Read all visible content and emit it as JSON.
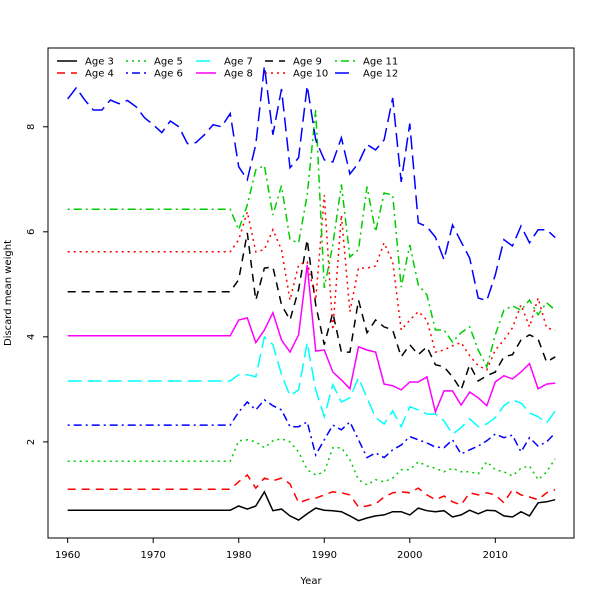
{
  "chart_data": {
    "type": "line",
    "title": "",
    "xlabel": "Year",
    "ylabel": "Discard mean weight",
    "xlim": [
      1957.7,
      2019.2
    ],
    "ylim": [
      0.17,
      9.5
    ],
    "xticks": [
      1960,
      1970,
      1980,
      1990,
      2000,
      2010
    ],
    "yticks": [
      2,
      4,
      6,
      8
    ],
    "grid": false,
    "legend_placement": "top-left",
    "x": [
      1960,
      1961,
      1962,
      1963,
      1964,
      1965,
      1966,
      1967,
      1968,
      1969,
      1970,
      1971,
      1972,
      1973,
      1974,
      1975,
      1976,
      1977,
      1978,
      1979,
      1980,
      1981,
      1982,
      1983,
      1984,
      1985,
      1986,
      1987,
      1988,
      1989,
      1990,
      1991,
      1992,
      1993,
      1994,
      1995,
      1996,
      1997,
      1998,
      1999,
      2000,
      2001,
      2002,
      2003,
      2004,
      2005,
      2006,
      2007,
      2008,
      2009,
      2010,
      2011,
      2012,
      2013,
      2014,
      2015,
      2016,
      2017
    ],
    "series": [
      {
        "name": "Age 3",
        "color": "#000000",
        "dash": "solid",
        "values": [
          0.7,
          0.7,
          0.7,
          0.7,
          0.7,
          0.7,
          0.7,
          0.7,
          0.7,
          0.7,
          0.7,
          0.7,
          0.7,
          0.7,
          0.7,
          0.7,
          0.7,
          0.7,
          0.7,
          0.7,
          0.78,
          0.72,
          0.78,
          1.05,
          0.69,
          0.72,
          0.59,
          0.51,
          0.63,
          0.74,
          0.7,
          0.69,
          0.67,
          0.59,
          0.5,
          0.55,
          0.59,
          0.61,
          0.67,
          0.67,
          0.61,
          0.74,
          0.69,
          0.67,
          0.69,
          0.57,
          0.61,
          0.7,
          0.63,
          0.7,
          0.69,
          0.59,
          0.57,
          0.67,
          0.59,
          0.84,
          0.86,
          0.9
        ]
      },
      {
        "name": "Age 4",
        "color": "#ff0000",
        "dash": "dashed",
        "values": [
          1.1,
          1.1,
          1.1,
          1.1,
          1.1,
          1.1,
          1.1,
          1.1,
          1.1,
          1.1,
          1.1,
          1.1,
          1.1,
          1.1,
          1.1,
          1.1,
          1.1,
          1.1,
          1.1,
          1.1,
          1.24,
          1.37,
          1.12,
          1.31,
          1.26,
          1.31,
          1.2,
          0.84,
          0.9,
          0.93,
          0.99,
          1.05,
          1.03,
          0.99,
          0.76,
          0.78,
          0.82,
          0.95,
          1.03,
          1.05,
          1.03,
          1.12,
          0.99,
          0.9,
          0.97,
          0.86,
          0.8,
          1.03,
          0.99,
          1.03,
          0.99,
          0.84,
          1.09,
          0.99,
          0.95,
          0.9,
          1.03,
          1.09
        ]
      },
      {
        "name": "Age 5",
        "color": "#00cd00",
        "dash": "dotted",
        "values": [
          1.63,
          1.63,
          1.63,
          1.63,
          1.63,
          1.63,
          1.63,
          1.63,
          1.63,
          1.63,
          1.63,
          1.63,
          1.63,
          1.63,
          1.63,
          1.63,
          1.63,
          1.63,
          1.63,
          1.63,
          2.02,
          2.04,
          2.0,
          1.89,
          2.02,
          2.06,
          2.0,
          1.81,
          1.47,
          1.37,
          1.43,
          1.89,
          1.89,
          1.66,
          1.28,
          1.18,
          1.28,
          1.24,
          1.31,
          1.47,
          1.47,
          1.62,
          1.54,
          1.5,
          1.43,
          1.5,
          1.43,
          1.43,
          1.39,
          1.62,
          1.47,
          1.43,
          1.35,
          1.5,
          1.54,
          1.28,
          1.43,
          1.68
        ]
      },
      {
        "name": "Age 6",
        "color": "#0000ff",
        "dash": "dotdash",
        "values": [
          2.32,
          2.32,
          2.32,
          2.32,
          2.32,
          2.32,
          2.32,
          2.32,
          2.32,
          2.32,
          2.32,
          2.32,
          2.32,
          2.32,
          2.32,
          2.32,
          2.32,
          2.32,
          2.32,
          2.32,
          2.57,
          2.76,
          2.61,
          2.8,
          2.69,
          2.61,
          2.29,
          2.29,
          2.38,
          1.75,
          2.04,
          2.32,
          2.23,
          2.38,
          2.04,
          1.7,
          1.79,
          1.7,
          1.85,
          1.94,
          2.1,
          2.04,
          1.98,
          1.9,
          1.89,
          2.04,
          1.77,
          1.85,
          1.92,
          2.02,
          2.15,
          2.08,
          2.13,
          1.81,
          2.08,
          1.92,
          2.0,
          2.17
        ]
      },
      {
        "name": "Age 7",
        "color": "#00ffff",
        "dash": "longdash",
        "values": [
          3.16,
          3.16,
          3.16,
          3.16,
          3.16,
          3.16,
          3.16,
          3.16,
          3.16,
          3.16,
          3.16,
          3.16,
          3.16,
          3.16,
          3.16,
          3.16,
          3.16,
          3.16,
          3.16,
          3.16,
          3.28,
          3.28,
          3.24,
          4.0,
          3.85,
          3.28,
          2.88,
          2.99,
          3.89,
          2.99,
          2.48,
          3.09,
          2.76,
          2.84,
          3.22,
          2.84,
          2.46,
          2.34,
          2.59,
          2.29,
          2.67,
          2.61,
          2.53,
          2.53,
          2.4,
          2.15,
          2.27,
          2.44,
          2.29,
          2.34,
          2.46,
          2.69,
          2.8,
          2.74,
          2.55,
          2.48,
          2.36,
          2.59
        ]
      },
      {
        "name": "Age 8",
        "color": "#ff00ff",
        "dash": "solid",
        "values": [
          4.02,
          4.02,
          4.02,
          4.02,
          4.02,
          4.02,
          4.02,
          4.02,
          4.02,
          4.02,
          4.02,
          4.02,
          4.02,
          4.02,
          4.02,
          4.02,
          4.02,
          4.02,
          4.02,
          4.02,
          4.32,
          4.36,
          3.89,
          4.13,
          4.46,
          3.94,
          3.71,
          4.04,
          5.37,
          3.73,
          3.75,
          3.33,
          3.18,
          3.01,
          3.81,
          3.75,
          3.71,
          3.1,
          3.07,
          2.99,
          3.14,
          3.14,
          3.24,
          2.57,
          2.97,
          2.97,
          2.7,
          2.95,
          2.84,
          2.69,
          3.14,
          3.26,
          3.2,
          3.33,
          3.49,
          3.01,
          3.1,
          3.12
        ]
      },
      {
        "name": "Age 9",
        "color": "#000000",
        "dash": "dashed",
        "values": [
          4.86,
          4.86,
          4.86,
          4.86,
          4.86,
          4.86,
          4.86,
          4.86,
          4.86,
          4.86,
          4.86,
          4.86,
          4.86,
          4.86,
          4.86,
          4.86,
          4.86,
          4.86,
          4.86,
          4.86,
          5.09,
          5.98,
          4.7,
          5.31,
          5.33,
          4.61,
          4.32,
          4.9,
          5.85,
          4.61,
          3.85,
          4.46,
          3.71,
          3.71,
          4.7,
          4.08,
          4.32,
          4.19,
          4.13,
          3.62,
          3.85,
          3.66,
          3.81,
          3.47,
          3.43,
          3.24,
          2.99,
          3.47,
          3.16,
          3.26,
          3.33,
          3.62,
          3.66,
          3.94,
          4.04,
          3.96,
          3.52,
          3.62
        ]
      },
      {
        "name": "Age 10",
        "color": "#ff0000",
        "dash": "dotted",
        "values": [
          5.62,
          5.62,
          5.62,
          5.62,
          5.62,
          5.62,
          5.62,
          5.62,
          5.62,
          5.62,
          5.62,
          5.62,
          5.62,
          5.62,
          5.62,
          5.62,
          5.62,
          5.62,
          5.62,
          5.62,
          5.85,
          6.38,
          5.62,
          5.66,
          6.04,
          5.66,
          4.7,
          5.37,
          5.43,
          4.7,
          6.7,
          4.13,
          6.32,
          4.48,
          5.31,
          5.31,
          5.35,
          5.79,
          5.43,
          4.13,
          4.32,
          4.48,
          4.32,
          3.71,
          3.75,
          3.83,
          3.89,
          3.64,
          3.45,
          3.37,
          3.75,
          3.94,
          4.17,
          4.61,
          4.19,
          4.74,
          4.17,
          4.13
        ]
      },
      {
        "name": "Age 11",
        "color": "#00cd00",
        "dash": "dotdash",
        "values": [
          6.43,
          6.43,
          6.43,
          6.43,
          6.43,
          6.43,
          6.43,
          6.43,
          6.43,
          6.43,
          6.43,
          6.43,
          6.43,
          6.43,
          6.43,
          6.43,
          6.43,
          6.43,
          6.43,
          6.43,
          6.04,
          6.51,
          7.18,
          7.26,
          6.32,
          6.88,
          5.85,
          5.79,
          6.7,
          8.32,
          4.93,
          5.75,
          6.9,
          5.52,
          5.66,
          6.86,
          6.0,
          6.74,
          6.7,
          4.95,
          5.75,
          4.99,
          4.8,
          4.13,
          4.13,
          3.9,
          4.08,
          4.19,
          3.75,
          3.43,
          4.04,
          4.51,
          4.59,
          4.51,
          4.7,
          4.42,
          4.65,
          4.51
        ]
      },
      {
        "name": "Age 12",
        "color": "#0000ff",
        "dash": "longdash",
        "values": [
          8.53,
          8.74,
          8.51,
          8.32,
          8.32,
          8.51,
          8.44,
          8.5,
          8.38,
          8.17,
          8.04,
          7.89,
          8.11,
          8.0,
          7.68,
          7.7,
          7.85,
          8.04,
          8.0,
          8.25,
          7.24,
          6.99,
          7.66,
          9.16,
          7.85,
          8.72,
          7.22,
          7.41,
          8.78,
          7.75,
          7.37,
          7.33,
          7.79,
          7.1,
          7.31,
          7.66,
          7.56,
          7.75,
          8.55,
          6.95,
          8.06,
          6.17,
          6.1,
          5.9,
          5.47,
          6.13,
          5.81,
          5.5,
          4.74,
          4.69,
          5.18,
          5.85,
          5.73,
          6.11,
          5.79,
          6.04,
          6.04,
          5.89
        ]
      }
    ]
  }
}
